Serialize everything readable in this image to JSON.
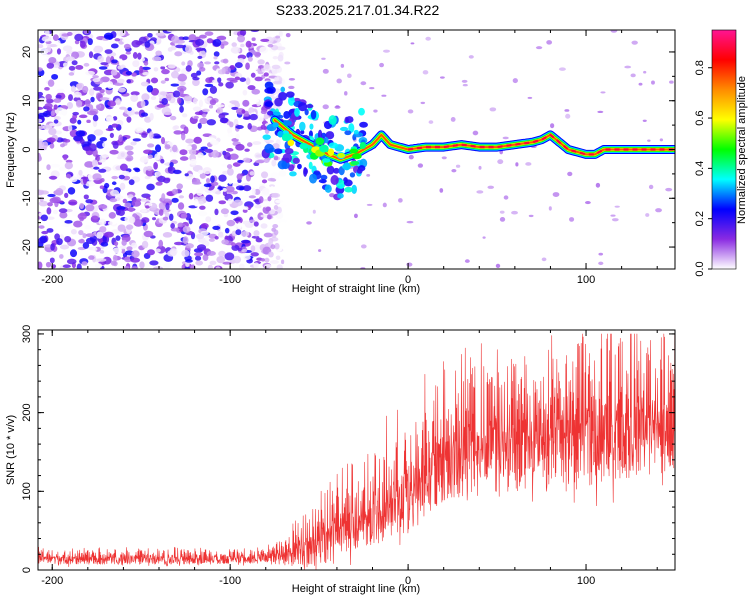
{
  "figure": {
    "title": "S233.2025.217.01.34.R22"
  },
  "chart_data": [
    {
      "type": "heatmap",
      "title": "",
      "xlabel": "Height of straight line (km)",
      "ylabel": "Frequency (Hz)",
      "xlim": [
        -208,
        150
      ],
      "ylim": [
        -24.5,
        24.5
      ],
      "x_ticks": [
        -200,
        -100,
        0,
        100
      ],
      "y_ticks": [
        -20,
        -10,
        0,
        10,
        20
      ],
      "colorbar": {
        "label": "Normalized spectral amplitude",
        "range": [
          0,
          0.95
        ],
        "ticks": [
          0.0,
          0.2,
          0.4,
          0.6,
          0.8
        ],
        "tick_labels": [
          "0.0",
          "0.2",
          "0.4",
          "0.6",
          "0.8"
        ],
        "colors": [
          "#ffffff",
          "#8a2be2",
          "#0000ff",
          "#00ffff",
          "#00ff00",
          "#ffff00",
          "#ff8c00",
          "#ff0000",
          "#ff1493"
        ]
      },
      "ridge": {
        "x": [
          -75,
          -65,
          -55,
          -45,
          -38,
          -30,
          -25,
          -20,
          -15,
          -10,
          -5,
          0,
          10,
          20,
          30,
          40,
          50,
          60,
          70,
          75,
          80,
          85,
          90,
          95,
          100,
          105,
          110,
          115,
          120,
          130,
          140,
          150
        ],
        "y": [
          6,
          3,
          1,
          -1,
          -2,
          -1,
          0,
          1,
          3,
          1,
          0.5,
          0,
          0.5,
          0.5,
          1,
          0.5,
          0.5,
          1,
          1.5,
          2,
          3,
          1.5,
          0,
          -0.5,
          -1,
          -1,
          0,
          0,
          0,
          0,
          0,
          0
        ]
      },
      "noise_region": {
        "x_from": -208,
        "x_to": -80,
        "amplitude": 0.25
      }
    },
    {
      "type": "line",
      "title": "",
      "xlabel": "Height of straight line (km)",
      "ylabel": "SNR (10 * v/v)",
      "xlim": [
        -208,
        150
      ],
      "ylim": [
        0,
        305
      ],
      "x_ticks": [
        -200,
        -100,
        0,
        100
      ],
      "y_ticks": [
        0,
        100,
        200,
        300
      ],
      "series": [
        {
          "color": "#ee3333",
          "x": [
            -208,
            -190,
            -170,
            -150,
            -130,
            -110,
            -90,
            -80,
            -70,
            -60,
            -50,
            -40,
            -30,
            -20,
            -10,
            0,
            10,
            20,
            30,
            40,
            50,
            60,
            70,
            80,
            90,
            100,
            110,
            120,
            130,
            140,
            150
          ],
          "mean": [
            18,
            17,
            17,
            17,
            17,
            18,
            18,
            20,
            30,
            40,
            50,
            70,
            80,
            95,
            110,
            125,
            150,
            175,
            185,
            190,
            195,
            195,
            195,
            200,
            200,
            205,
            210,
            215,
            220,
            220,
            225
          ],
          "spread": [
            10,
            10,
            10,
            10,
            10,
            10,
            10,
            12,
            25,
            35,
            45,
            55,
            60,
            65,
            70,
            80,
            85,
            90,
            90,
            90,
            95,
            95,
            95,
            100,
            100,
            100,
            100,
            100,
            100,
            100,
            100
          ]
        }
      ]
    }
  ]
}
